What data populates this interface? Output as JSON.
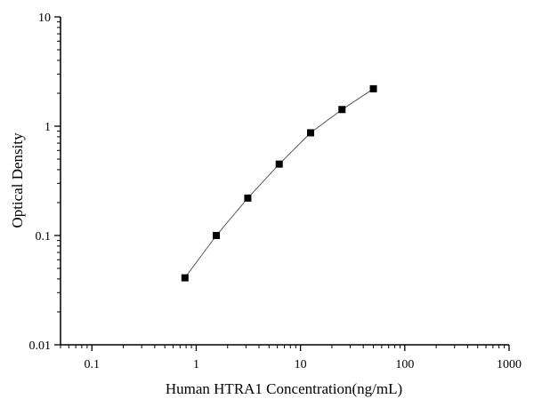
{
  "chart_data": {
    "type": "scatter",
    "title": "",
    "xlabel": "Human HTRA1 Concentration(ng/mL)",
    "ylabel": "Optical Density",
    "x_scale": "log",
    "y_scale": "log",
    "xlim": [
      0.05,
      1000
    ],
    "ylim": [
      0.01,
      10
    ],
    "x_ticks": [
      0.1,
      1,
      10,
      100,
      1000
    ],
    "x_tick_labels": [
      "0.1",
      "1",
      "10",
      "100",
      "1000"
    ],
    "y_ticks": [
      0.01,
      0.1,
      1,
      10
    ],
    "y_tick_labels": [
      "0.01",
      "0.1",
      "1",
      "10"
    ],
    "grid": false,
    "series": [
      {
        "marker": "square",
        "connected_by_line": true,
        "x": [
          0.78,
          1.56,
          3.125,
          6.25,
          12.5,
          25,
          50
        ],
        "y": [
          0.041,
          0.1,
          0.22,
          0.45,
          0.87,
          1.42,
          2.2
        ]
      }
    ],
    "colors": {
      "marker": "#000000",
      "line": "#555555",
      "axis": "#000000"
    }
  }
}
